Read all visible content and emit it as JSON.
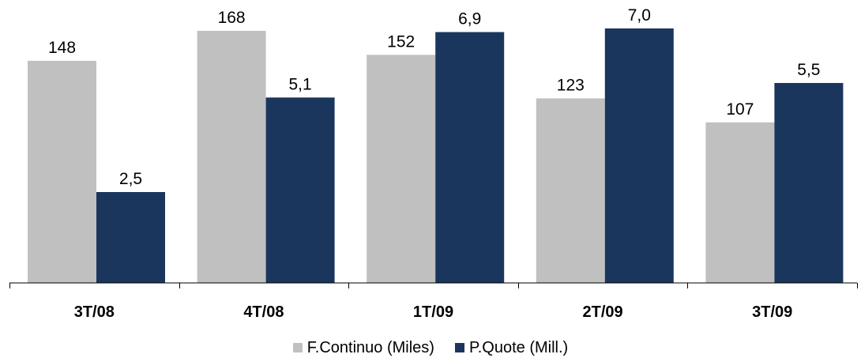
{
  "chart_data": {
    "type": "bar",
    "categories": [
      "3T/08",
      "4T/08",
      "1T/09",
      "2T/09",
      "3T/09"
    ],
    "series": [
      {
        "name": "F.Continuo (Miles)",
        "color": "#c0c0c0",
        "values": [
          148,
          168,
          152,
          123,
          107
        ],
        "labels": [
          "148",
          "168",
          "152",
          "123",
          "107"
        ]
      },
      {
        "name": "P.Quote (Mill.)",
        "color": "#1b365d",
        "values": [
          2.5,
          5.1,
          6.9,
          7.0,
          5.5
        ],
        "labels": [
          "2,5",
          "5,1",
          "6,9",
          "7,0",
          "5,5"
        ]
      }
    ],
    "grid": false,
    "legend_position": "bottom"
  }
}
